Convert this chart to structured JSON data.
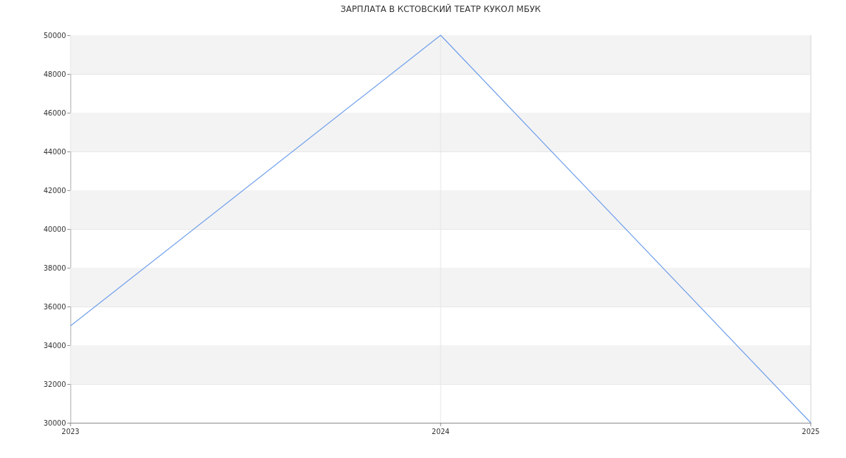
{
  "chart_data": {
    "type": "line",
    "title": "ЗАРПЛАТА В КСТОВСКИЙ ТЕАТР КУКОЛ МБУК",
    "x": [
      2023,
      2024,
      2025
    ],
    "series": [
      {
        "color": "#6d9eeb",
        "values": [
          35000,
          50000,
          30000
        ]
      }
    ],
    "xlim": [
      2023,
      2025
    ],
    "xticks": [
      2023,
      2024,
      2025
    ],
    "ylim": [
      30000,
      50000
    ],
    "yticks": [
      30000,
      32000,
      34000,
      36000,
      38000,
      40000,
      42000,
      44000,
      46000,
      48000,
      50000
    ],
    "grid": true,
    "marker": "none",
    "line_style": "solid"
  }
}
